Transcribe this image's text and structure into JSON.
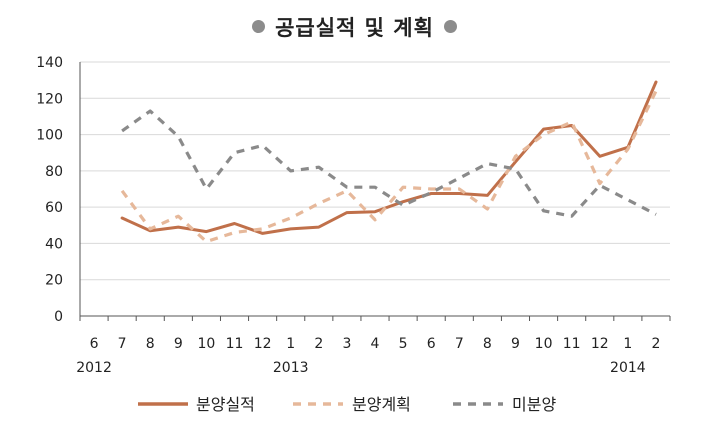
{
  "chart_data": {
    "type": "line",
    "title": "공급실적 및 계획",
    "xlabel": "",
    "ylabel": "",
    "ylim": [
      0,
      140
    ],
    "yticks": [
      0,
      20,
      40,
      60,
      80,
      100,
      120,
      140
    ],
    "categories": [
      "6",
      "7",
      "8",
      "9",
      "10",
      "11",
      "12",
      "1",
      "2",
      "3",
      "4",
      "5",
      "6",
      "7",
      "8",
      "9",
      "10",
      "11",
      "12",
      "1",
      "2"
    ],
    "year_labels": [
      {
        "category_index": 0,
        "label": "2012"
      },
      {
        "category_index": 7,
        "label": "2013"
      },
      {
        "category_index": 19,
        "label": "2014"
      }
    ],
    "grid": "horizontal",
    "legend_position": "bottom",
    "series": [
      {
        "name": "분양실적",
        "color": "#c0704a",
        "style": "solid",
        "values": [
          null,
          54,
          47,
          49,
          46.5,
          51,
          45.5,
          48,
          49,
          57,
          57.5,
          63,
          67.5,
          67.5,
          66.5,
          85,
          103,
          105,
          88,
          93,
          129
        ]
      },
      {
        "name": "분양계획",
        "color": "#e6b89a",
        "style": "dashed",
        "values": [
          null,
          69,
          48,
          55,
          41,
          46,
          48,
          54,
          62,
          69,
          53,
          71,
          70,
          70,
          59,
          88,
          100,
          107,
          73,
          92,
          124
        ]
      },
      {
        "name": "미분양",
        "color": "#8a8a8a",
        "style": "dashed",
        "values": [
          null,
          102,
          113,
          99,
          70,
          90,
          94,
          80,
          82,
          71,
          71,
          61,
          68,
          76,
          84,
          81,
          58,
          55,
          72,
          64,
          56
        ]
      }
    ]
  }
}
